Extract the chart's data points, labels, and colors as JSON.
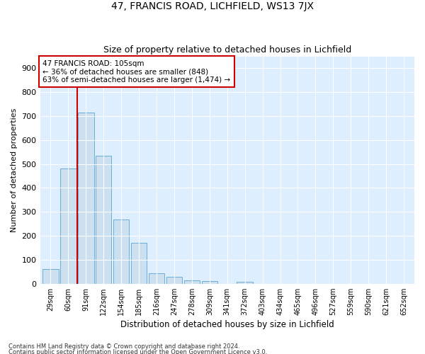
{
  "title": "47, FRANCIS ROAD, LICHFIELD, WS13 7JX",
  "subtitle": "Size of property relative to detached houses in Lichfield",
  "xlabel": "Distribution of detached houses by size in Lichfield",
  "ylabel": "Number of detached properties",
  "categories": [
    "29sqm",
    "60sqm",
    "91sqm",
    "122sqm",
    "154sqm",
    "185sqm",
    "216sqm",
    "247sqm",
    "278sqm",
    "309sqm",
    "341sqm",
    "372sqm",
    "403sqm",
    "434sqm",
    "465sqm",
    "496sqm",
    "527sqm",
    "559sqm",
    "590sqm",
    "621sqm",
    "652sqm"
  ],
  "values": [
    62,
    480,
    716,
    535,
    268,
    172,
    44,
    30,
    15,
    12,
    0,
    8,
    0,
    0,
    0,
    0,
    0,
    0,
    0,
    0,
    0
  ],
  "bar_color": "#cce0f0",
  "bar_edge_color": "#6baed6",
  "property_label": "47 FRANCIS ROAD: 105sqm",
  "pct_smaller": "36% of detached houses are smaller (848)",
  "pct_larger": "63% of semi-detached houses are larger (1,474)",
  "vline_x_index": 2.0,
  "vline_color": "#cc0000",
  "annotation_box_color": "#cc0000",
  "ylim": [
    0,
    950
  ],
  "yticks": [
    0,
    100,
    200,
    300,
    400,
    500,
    600,
    700,
    800,
    900
  ],
  "background_color": "#ddeeff",
  "footer1": "Contains HM Land Registry data © Crown copyright and database right 2024.",
  "footer2": "Contains public sector information licensed under the Open Government Licence v3.0.",
  "title_fontsize": 10,
  "subtitle_fontsize": 9,
  "bar_width": 0.9
}
